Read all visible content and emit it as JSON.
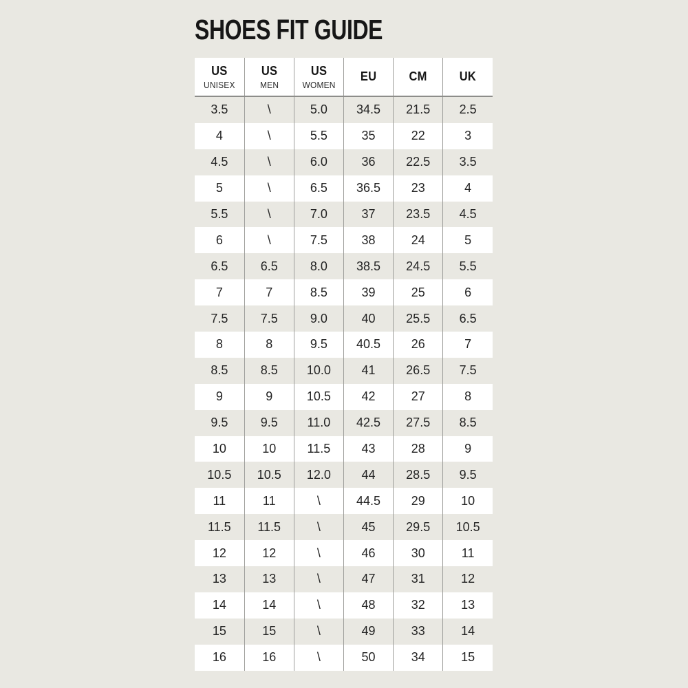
{
  "page": {
    "title": "SHOES FIT GUIDE",
    "background_color": "#e9e8e2",
    "row_stripe_color": "#ffffff",
    "grid_line_color": "#9d9d9a",
    "header_underline_color": "#8d8d8a",
    "text_color": "#242424"
  },
  "table": {
    "columns": [
      {
        "id": "us-unisex",
        "label": "US",
        "sublabel": "UNISEX"
      },
      {
        "id": "us-men",
        "label": "US",
        "sublabel": "MEN"
      },
      {
        "id": "us-women",
        "label": "US",
        "sublabel": "WOMEN"
      },
      {
        "id": "eu",
        "label": "EU",
        "sublabel": ""
      },
      {
        "id": "cm",
        "label": "CM",
        "sublabel": ""
      },
      {
        "id": "uk",
        "label": "UK",
        "sublabel": ""
      }
    ],
    "rows": [
      [
        "3.5",
        "\\",
        "5.0",
        "34.5",
        "21.5",
        "2.5"
      ],
      [
        "4",
        "\\",
        "5.5",
        "35",
        "22",
        "3"
      ],
      [
        "4.5",
        "\\",
        "6.0",
        "36",
        "22.5",
        "3.5"
      ],
      [
        "5",
        "\\",
        "6.5",
        "36.5",
        "23",
        "4"
      ],
      [
        "5.5",
        "\\",
        "7.0",
        "37",
        "23.5",
        "4.5"
      ],
      [
        "6",
        "\\",
        "7.5",
        "38",
        "24",
        "5"
      ],
      [
        "6.5",
        "6.5",
        "8.0",
        "38.5",
        "24.5",
        "5.5"
      ],
      [
        "7",
        "7",
        "8.5",
        "39",
        "25",
        "6"
      ],
      [
        "7.5",
        "7.5",
        "9.0",
        "40",
        "25.5",
        "6.5"
      ],
      [
        "8",
        "8",
        "9.5",
        "40.5",
        "26",
        "7"
      ],
      [
        "8.5",
        "8.5",
        "10.0",
        "41",
        "26.5",
        "7.5"
      ],
      [
        "9",
        "9",
        "10.5",
        "42",
        "27",
        "8"
      ],
      [
        "9.5",
        "9.5",
        "11.0",
        "42.5",
        "27.5",
        "8.5"
      ],
      [
        "10",
        "10",
        "11.5",
        "43",
        "28",
        "9"
      ],
      [
        "10.5",
        "10.5",
        "12.0",
        "44",
        "28.5",
        "9.5"
      ],
      [
        "11",
        "11",
        "\\",
        "44.5",
        "29",
        "10"
      ],
      [
        "11.5",
        "11.5",
        "\\",
        "45",
        "29.5",
        "10.5"
      ],
      [
        "12",
        "12",
        "\\",
        "46",
        "30",
        "11"
      ],
      [
        "13",
        "13",
        "\\",
        "47",
        "31",
        "12"
      ],
      [
        "14",
        "14",
        "\\",
        "48",
        "32",
        "13"
      ],
      [
        "15",
        "15",
        "\\",
        "49",
        "33",
        "14"
      ],
      [
        "16",
        "16",
        "\\",
        "50",
        "34",
        "15"
      ]
    ]
  }
}
